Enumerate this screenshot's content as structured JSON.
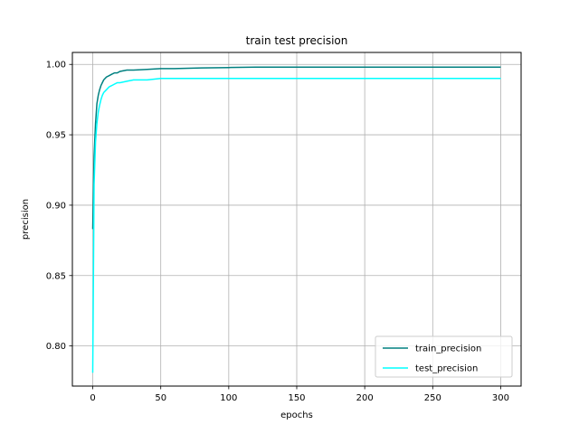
{
  "chart_data": {
    "type": "line",
    "title": "train test precision",
    "xlabel": "epochs",
    "ylabel": "precision",
    "xlim": [
      -15,
      315
    ],
    "ylim": [
      0.7715,
      1.0085
    ],
    "xticks": [
      0,
      50,
      100,
      150,
      200,
      250,
      300
    ],
    "yticks": [
      0.8,
      0.85,
      0.9,
      0.95,
      1.0
    ],
    "xtick_labels": [
      "0",
      "50",
      "100",
      "150",
      "200",
      "250",
      "300"
    ],
    "ytick_labels": [
      "0.80",
      "0.85",
      "0.90",
      "0.95",
      "1.00"
    ],
    "grid": true,
    "legend_position": "lower-right",
    "series": [
      {
        "name": "train_precision",
        "color": "#008080",
        "x": [
          0,
          1,
          2,
          3,
          4,
          5,
          6,
          7,
          8,
          10,
          12,
          14,
          16,
          18,
          20,
          25,
          30,
          40,
          50,
          60,
          80,
          100,
          120,
          150,
          180,
          200,
          250,
          300
        ],
        "y": [
          0.883,
          0.935,
          0.958,
          0.972,
          0.978,
          0.982,
          0.985,
          0.987,
          0.989,
          0.991,
          0.992,
          0.993,
          0.994,
          0.994,
          0.995,
          0.996,
          0.996,
          0.9965,
          0.997,
          0.997,
          0.9975,
          0.9978,
          0.998,
          0.998,
          0.998,
          0.998,
          0.998,
          0.998
        ]
      },
      {
        "name": "test_precision",
        "color": "#00ffff",
        "x": [
          0,
          1,
          2,
          3,
          4,
          5,
          6,
          7,
          8,
          10,
          12,
          14,
          16,
          18,
          20,
          25,
          30,
          40,
          50,
          60,
          80,
          100,
          120,
          150,
          180,
          200,
          250,
          300
        ],
        "y": [
          0.781,
          0.915,
          0.945,
          0.958,
          0.966,
          0.971,
          0.975,
          0.978,
          0.98,
          0.982,
          0.984,
          0.985,
          0.986,
          0.987,
          0.987,
          0.988,
          0.989,
          0.989,
          0.99,
          0.99,
          0.99,
          0.99,
          0.99,
          0.99,
          0.99,
          0.99,
          0.99,
          0.99
        ]
      }
    ]
  }
}
